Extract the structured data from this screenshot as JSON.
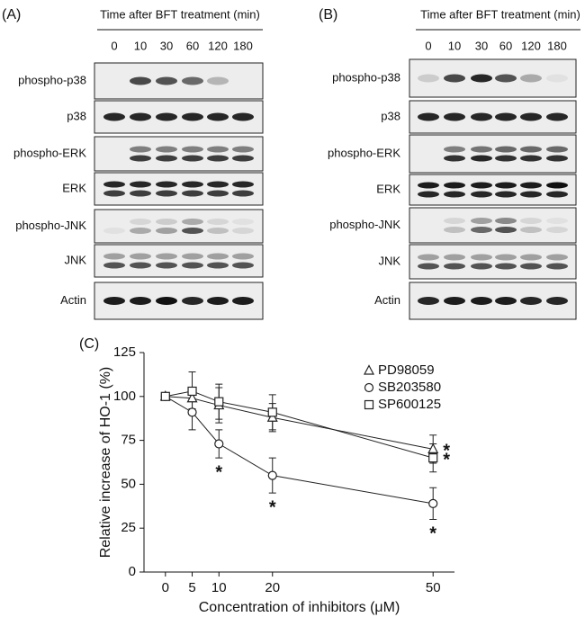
{
  "panel_a": {
    "label": "(A)",
    "header": "Time after BFT treatment (min)",
    "times": [
      "0",
      "10",
      "30",
      "60",
      "120",
      "180"
    ],
    "rows": [
      "phospho-p38",
      "p38",
      "phospho-ERK",
      "ERK",
      "phospho-JNK",
      "JNK",
      "Actin"
    ]
  },
  "panel_b": {
    "label": "(B)",
    "header": "Time after BFT treatment (min)",
    "times": [
      "0",
      "10",
      "30",
      "60",
      "120",
      "180"
    ],
    "rows": [
      "phospho-p38",
      "p38",
      "phospho-ERK",
      "ERK",
      "phospho-JNK",
      "JNK",
      "Actin"
    ]
  },
  "chart_data": {
    "type": "line",
    "panel_label": "(C)",
    "x_label": "Concentration of inhibitors (μM)",
    "y_label": "Relative increase of HO-1 (%)",
    "x": [
      0,
      5,
      10,
      20,
      50
    ],
    "xlim": [
      -4,
      54
    ],
    "xticks": [
      0,
      5,
      10,
      20,
      50
    ],
    "ylim": [
      0,
      125
    ],
    "yticks": [
      0,
      25,
      50,
      75,
      100,
      125
    ],
    "legend": "upper right",
    "series": [
      {
        "name": "PD98059",
        "marker": "triangle",
        "color": "#222222",
        "values": [
          100,
          99,
          95,
          88,
          70
        ],
        "errors": [
          0,
          6,
          10,
          8,
          8
        ],
        "significance": [
          null,
          null,
          null,
          null,
          "*"
        ]
      },
      {
        "name": "SB203580",
        "marker": "circle",
        "color": "#222222",
        "values": [
          100,
          91,
          73,
          55,
          39
        ],
        "errors": [
          0,
          10,
          8,
          10,
          9
        ],
        "significance": [
          null,
          null,
          "*",
          "*",
          "*"
        ]
      },
      {
        "name": "SP600125",
        "marker": "square",
        "color": "#222222",
        "values": [
          100,
          103,
          97,
          91,
          65
        ],
        "errors": [
          0,
          11,
          10,
          10,
          8
        ],
        "significance": [
          null,
          null,
          null,
          null,
          "*"
        ]
      }
    ]
  }
}
